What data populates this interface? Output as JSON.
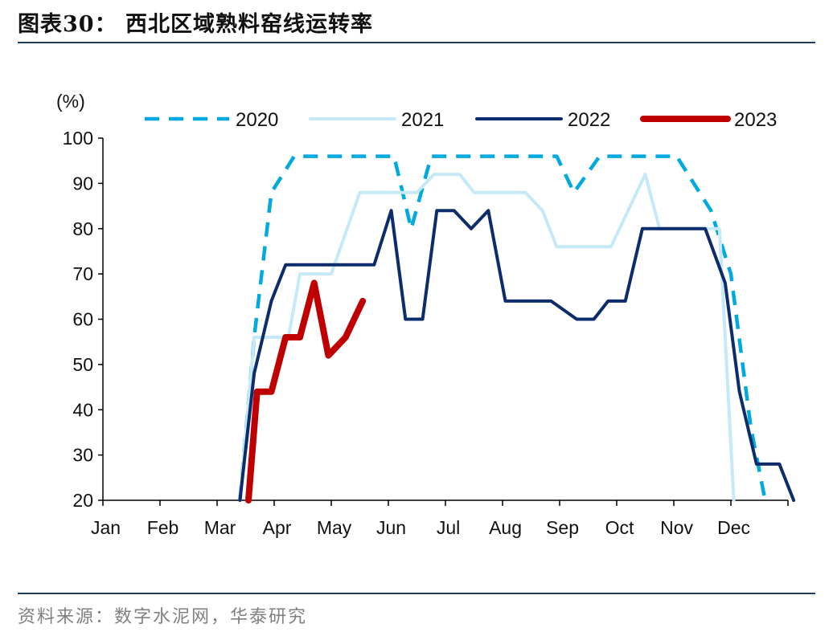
{
  "header": {
    "title": "图表30：  西北区域熟料窑线运转率"
  },
  "footer": {
    "source": "资料来源：数字水泥网，华泰研究"
  },
  "chart_data": {
    "type": "line",
    "ylabel": "(%)",
    "ylim": [
      20,
      100
    ],
    "yticks": [
      20,
      30,
      40,
      50,
      60,
      70,
      80,
      90,
      100
    ],
    "xlim": [
      0,
      12
    ],
    "months": [
      "Jan",
      "Feb",
      "Mar",
      "Apr",
      "May",
      "Jun",
      "Jul",
      "Aug",
      "Sep",
      "Oct",
      "Nov",
      "Dec"
    ],
    "grid": false,
    "legend_position": "top",
    "series": [
      {
        "name": "2020",
        "color": "#00a9e0",
        "style": "dashed",
        "points": [
          [
            2.4,
            20
          ],
          [
            2.65,
            56
          ],
          [
            2.95,
            88
          ],
          [
            3.35,
            96
          ],
          [
            5.1,
            96
          ],
          [
            5.4,
            80
          ],
          [
            5.75,
            96
          ],
          [
            7.95,
            96
          ],
          [
            8.25,
            88
          ],
          [
            8.7,
            96
          ],
          [
            9.45,
            96
          ],
          [
            10.05,
            96
          ],
          [
            10.65,
            84
          ],
          [
            11.0,
            70
          ],
          [
            11.35,
            36
          ],
          [
            11.6,
            20
          ]
        ]
      },
      {
        "name": "2021",
        "color": "#c6e9f7",
        "style": "solid",
        "points": [
          [
            2.4,
            20
          ],
          [
            2.65,
            56
          ],
          [
            3.25,
            56
          ],
          [
            3.45,
            70
          ],
          [
            4.0,
            70
          ],
          [
            4.5,
            88
          ],
          [
            5.5,
            88
          ],
          [
            5.8,
            92
          ],
          [
            6.25,
            92
          ],
          [
            6.5,
            88
          ],
          [
            7.4,
            88
          ],
          [
            7.7,
            84
          ],
          [
            7.95,
            76
          ],
          [
            8.6,
            76
          ],
          [
            8.9,
            76
          ],
          [
            9.5,
            92
          ],
          [
            9.75,
            80
          ],
          [
            10.8,
            80
          ],
          [
            11.05,
            20
          ]
        ]
      },
      {
        "name": "2022",
        "color": "#0d2c6c",
        "style": "solid",
        "points": [
          [
            2.4,
            20
          ],
          [
            2.65,
            48
          ],
          [
            2.95,
            64
          ],
          [
            3.2,
            72
          ],
          [
            4.75,
            72
          ],
          [
            5.05,
            84
          ],
          [
            5.3,
            60
          ],
          [
            5.6,
            60
          ],
          [
            5.85,
            84
          ],
          [
            6.15,
            84
          ],
          [
            6.45,
            80
          ],
          [
            6.75,
            84
          ],
          [
            7.05,
            64
          ],
          [
            7.7,
            64
          ],
          [
            7.85,
            64
          ],
          [
            8.3,
            60
          ],
          [
            8.6,
            60
          ],
          [
            8.85,
            64
          ],
          [
            9.15,
            64
          ],
          [
            9.45,
            80
          ],
          [
            9.75,
            80
          ],
          [
            10.25,
            80
          ],
          [
            10.55,
            80
          ],
          [
            10.9,
            68
          ],
          [
            11.15,
            44
          ],
          [
            11.45,
            28
          ],
          [
            11.85,
            28
          ],
          [
            12.1,
            20
          ]
        ]
      },
      {
        "name": "2023",
        "color": "#c00000",
        "style": "solid",
        "points": [
          [
            2.55,
            20
          ],
          [
            2.7,
            44
          ],
          [
            2.95,
            44
          ],
          [
            3.2,
            56
          ],
          [
            3.45,
            56
          ],
          [
            3.7,
            68
          ],
          [
            3.95,
            52
          ],
          [
            4.25,
            56
          ],
          [
            4.55,
            64
          ]
        ]
      }
    ]
  }
}
